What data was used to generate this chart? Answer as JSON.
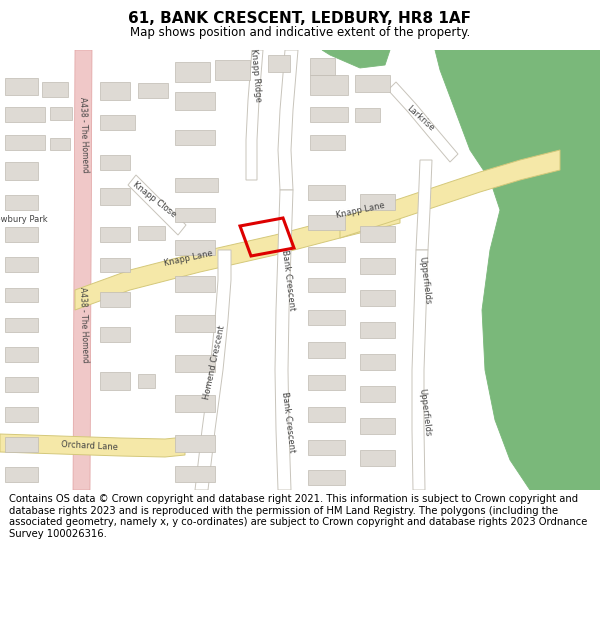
{
  "title": "61, BANK CRESCENT, LEDBURY, HR8 1AF",
  "subtitle": "Map shows position and indicative extent of the property.",
  "copyright": "Contains OS data © Crown copyright and database right 2021. This information is subject to Crown copyright and database rights 2023 and is reproduced with the permission of HM Land Registry. The polygons (including the associated geometry, namely x, y co-ordinates) are subject to Crown copyright and database rights 2023 Ordnance Survey 100026316.",
  "map_bg": "#f7f6f4",
  "road_yellow_fill": "#f5e8a8",
  "road_yellow_border": "#d4c87a",
  "road_white_fill": "#ffffff",
  "road_white_border": "#c8c4bb",
  "road_pink_fill": "#f0c8c8",
  "road_pink_border": "#e0a0a0",
  "building_fill": "#dedad4",
  "building_border": "#c0bbb2",
  "green_fill": "#7ab87a",
  "property_red": "#dd0000",
  "text_color": "#444444",
  "title_fs": 11,
  "subtitle_fs": 8.5,
  "footer_fs": 7.2,
  "road_label_fs": 6.0
}
